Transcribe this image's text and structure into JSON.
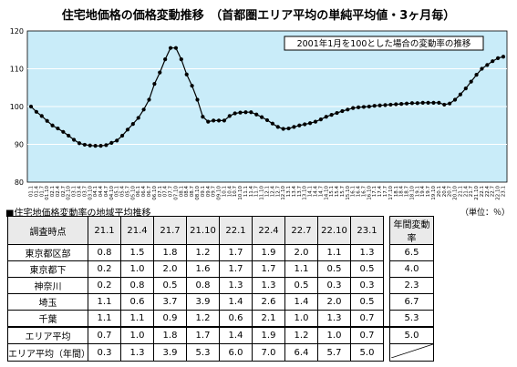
{
  "page": {
    "title": "住宅地価格の価格変動推移　（首都圏エリア平均の単純平均値・3ヶ月毎）",
    "table_title": "■住宅地価格変動率の地域平均推移",
    "unit_note": "（単位：％）"
  },
  "chart_data": {
    "type": "line",
    "title": "住宅地価格の価格変動推移　（首都圏エリア平均の単純平均値・3ヶ月毎）",
    "annotation": "2001年1月を100とした場合の変動率の推移",
    "ylim": [
      80,
      120
    ],
    "yticks": [
      80,
      90,
      100,
      110,
      120
    ],
    "grid": true,
    "x": [
      "01.1",
      "01.4",
      "01.7",
      "01.10",
      "02.1",
      "02.4",
      "02.7",
      "02.10",
      "03.1",
      "03.4",
      "03.7",
      "03.10",
      "04.1",
      "04.4",
      "04.7",
      "04.10",
      "05.1",
      "05.4",
      "05.7",
      "05.10",
      "06.1",
      "06.4",
      "06.7",
      "06.10",
      "07.1",
      "07.4",
      "07.7",
      "07.10",
      "08.1",
      "08.4",
      "08.7",
      "08.10",
      "09.1",
      "09.4",
      "09.7",
      "09.10",
      "10.1",
      "10.4",
      "10.7",
      "10.10",
      "11.1",
      "11.4",
      "11.7",
      "11.10",
      "12.1",
      "12.4",
      "12.7",
      "12.10",
      "13.1",
      "13.4",
      "13.7",
      "13.10",
      "14.1",
      "14.4",
      "14.7",
      "14.10",
      "15.1",
      "15.4",
      "15.7",
      "15.10",
      "16.1",
      "16.4",
      "16.7",
      "16.10",
      "17.1",
      "17.4",
      "17.7",
      "17.10",
      "18.1",
      "18.4",
      "18.7",
      "18.10",
      "19.1",
      "19.4",
      "19.7",
      "19.10",
      "20.1",
      "20.4",
      "20.7",
      "20.10",
      "21.1",
      "21.4",
      "21.7",
      "21.10",
      "22.1",
      "22.4",
      "22.7",
      "22.10",
      "23.1"
    ],
    "xtick_labels": [
      "01.1",
      "02.1",
      "03.1",
      "04.1",
      "05.1",
      "06.1",
      "07.1",
      "08.1",
      "09.1",
      "10.1",
      "11.1",
      "12.1",
      "13.1",
      "14.1",
      "15.1",
      "16.1",
      "17.1",
      "18.1",
      "19.1",
      "20.1",
      "21.1",
      "22.1",
      "23.1"
    ],
    "values": [
      100.0,
      98.6,
      97.5,
      96.2,
      95.0,
      94.2,
      93.3,
      92.3,
      91.2,
      90.3,
      89.9,
      89.7,
      89.6,
      89.6,
      89.8,
      90.4,
      91.0,
      92.3,
      93.9,
      95.4,
      97.0,
      99.2,
      101.8,
      106.0,
      109.0,
      112.5,
      115.5,
      115.5,
      112.5,
      108.5,
      105.5,
      101.8,
      97.3,
      96.0,
      96.3,
      96.3,
      96.3,
      97.5,
      98.2,
      98.4,
      98.5,
      98.5,
      97.9,
      97.2,
      96.4,
      95.5,
      94.6,
      94.1,
      94.2,
      94.6,
      95.0,
      95.3,
      95.6,
      96.0,
      96.6,
      97.3,
      97.8,
      98.3,
      98.8,
      99.2,
      99.6,
      99.8,
      99.9,
      100.0,
      100.2,
      100.3,
      100.4,
      100.5,
      100.6,
      100.7,
      100.8,
      100.9,
      100.9,
      101.0,
      101.0,
      101.0,
      101.0,
      100.5,
      100.8,
      101.8,
      103.2,
      104.8,
      106.6,
      108.4,
      110.0,
      111.0,
      112.0,
      112.8,
      113.2
    ]
  },
  "table": {
    "headers": [
      "調査時点",
      "21.1",
      "21.4",
      "21.7",
      "21.10",
      "22.1",
      "22.4",
      "22.7",
      "22.10",
      "23.1",
      "年間変動率"
    ],
    "rows": [
      {
        "label": "東京都区部",
        "values": [
          "0.8",
          "1.5",
          "1.8",
          "1.2",
          "1.7",
          "1.9",
          "2.0",
          "1.1",
          "1.3"
        ],
        "annual": "6.5"
      },
      {
        "label": "東京都下",
        "values": [
          "0.2",
          "1.0",
          "2.0",
          "1.6",
          "1.7",
          "1.7",
          "1.1",
          "0.5",
          "0.5"
        ],
        "annual": "4.0"
      },
      {
        "label": "神奈川",
        "values": [
          "0.2",
          "0.8",
          "0.5",
          "0.8",
          "1.3",
          "1.3",
          "0.5",
          "0.3",
          "0.3"
        ],
        "annual": "2.3"
      },
      {
        "label": "埼玉",
        "values": [
          "1.1",
          "0.6",
          "3.7",
          "3.9",
          "1.4",
          "2.6",
          "1.4",
          "2.0",
          "0.5"
        ],
        "annual": "6.7"
      },
      {
        "label": "千葉",
        "values": [
          "1.1",
          "1.1",
          "0.9",
          "1.2",
          "0.6",
          "2.1",
          "1.0",
          "1.3",
          "0.7"
        ],
        "annual": "5.3"
      },
      {
        "label": "エリア平均",
        "values": [
          "0.7",
          "1.0",
          "1.8",
          "1.7",
          "1.4",
          "1.9",
          "1.2",
          "1.0",
          "0.7"
        ],
        "annual": "5.0"
      },
      {
        "label": "エリア平均（年間）",
        "values": [
          "0.3",
          "1.3",
          "3.9",
          "5.3",
          "6.0",
          "7.0",
          "6.4",
          "5.7",
          "5.0"
        ],
        "annual": ""
      }
    ]
  },
  "colors": {
    "plot_bg": "#c9ecf9",
    "line": "#000000",
    "grid": "#ffffff",
    "header_bg": "#eaeaea"
  }
}
